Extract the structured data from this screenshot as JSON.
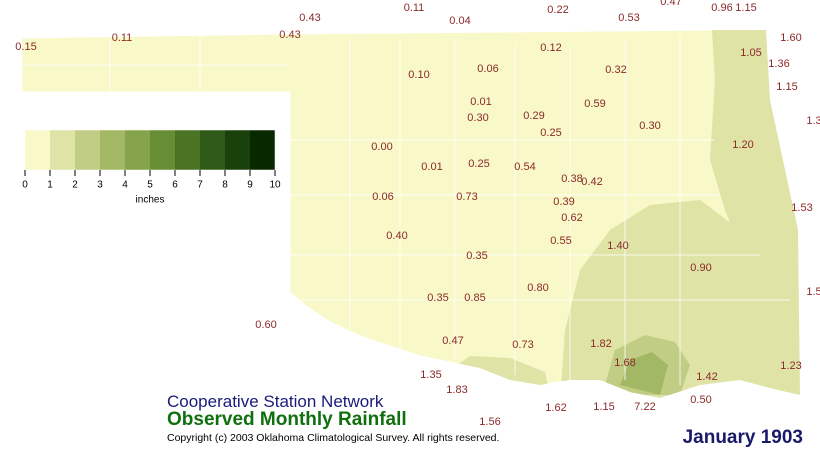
{
  "map": {
    "stations": [
      "0.43",
      "0.11",
      "0.04",
      "0.22",
      "0.53",
      "0.47",
      "0.96",
      "1.15",
      "0.15",
      "0.11",
      "0.43",
      "1.60",
      "0.12",
      "1.05",
      "1.36",
      "0.10",
      "0.06",
      "0.32",
      "1.15",
      "0.01",
      "0.59",
      "0.30",
      "0.29",
      "1.3",
      "0.25",
      "0.30",
      "1.20",
      "0.00",
      "0.01",
      "0.25",
      "0.54",
      "0.38",
      "0.42",
      "0.06",
      "0.73",
      "0.39",
      "1.53",
      "0.62",
      "0.40",
      "0.55",
      "1.40",
      "0.35",
      "0.90",
      "1.5",
      "0.35",
      "0.85",
      "0.80",
      "0.60",
      "0.47",
      "0.73",
      "1.82",
      "1.68",
      "1.23",
      "1.35",
      "1.42",
      "1.83",
      "0.50",
      "1.62",
      "1.15",
      "7.22",
      "1.56"
    ],
    "legend": {
      "ticks": [
        "0",
        "1",
        "2",
        "3",
        "4",
        "5",
        "6",
        "7",
        "8",
        "9",
        "10"
      ],
      "unit": "inches"
    },
    "network": "Cooperative Station Network",
    "title": "Observed Monthly Rainfall",
    "copyright": "Copyright (c) 2003 Oklahoma Climatological Survey. All rights reserved.",
    "period": "January 1903"
  }
}
